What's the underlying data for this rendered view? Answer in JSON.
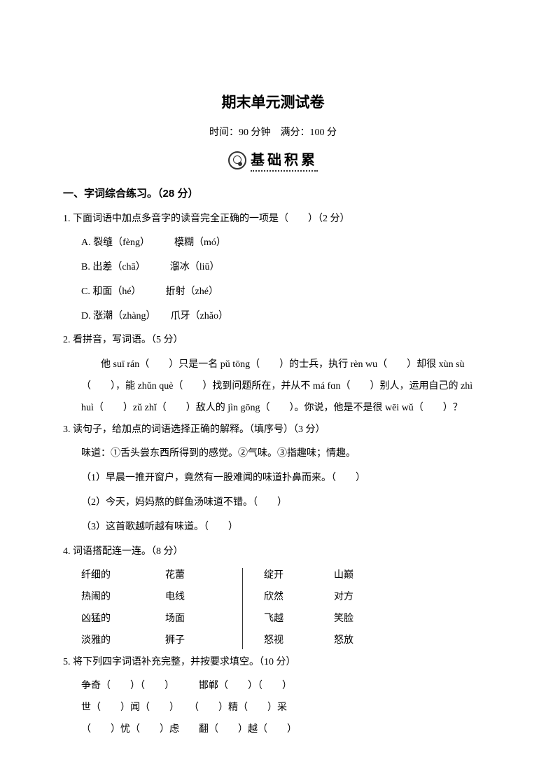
{
  "title": "期末单元测试卷",
  "subtitle": "时间：90 分钟　满分：100 分",
  "banner": "基础积累",
  "section1": {
    "heading": "一、字词综合练习。（28 分）",
    "q1": {
      "stem": "1. 下面词语中加点多音字的读音完全正确的一项是（　　）（2 分）",
      "optA_pre": "A. 裂",
      "optA_char": "缝",
      "optA_post": "（fèng）",
      "optA2_char": "模",
      "optA2_post": "糊（mó）",
      "optB_pre": "B. 出",
      "optB_char": "差",
      "optB_post": "（chā）",
      "optB2_char": "溜",
      "optB2_post": "冰（liū）",
      "optC_pre": "C. ",
      "optC_char": "和",
      "optC_post": "面（hé）",
      "optC2_char": "折",
      "optC2_post": "射（zhé）",
      "optD_pre": "D. ",
      "optD_char": "涨",
      "optD_post": "潮（zhàng）",
      "optD2_char": "爪",
      "optD2_post": "牙（zhǎo）"
    },
    "q2": {
      "stem": "2. 看拼音，写词语。（5 分）",
      "body": "　　他 suī rán（　　）只是一名 pǔ tōng（　　）的士兵，执行 rèn wu（　　）却很 xùn sù（　　），能 zhǔn què（　　）找到问题所在，并从不 má fɑn（　　）别人，运用自己的 zhì huì（　　）zǔ zhǐ（　　）敌人的 jìn gōng（　　）。你说，他是不是很 wēi wǔ（　　）？"
    },
    "q3": {
      "stem": "3. 读句子，给加点的词语选择正确的解释。（填序号）（3 分）",
      "def": "味道：①舌头尝东西所得到的感觉。②气味。③指趣味；情趣。",
      "s1": "（1）早晨一推开窗户，竟然有一股难闻的味道扑鼻而来。（　　）",
      "s2": "（2）今天，妈妈熬的鲜鱼汤味道不错。（　　）",
      "s3": "（3）这首歌越听越有味道。（　　）"
    },
    "q4": {
      "stem": "4. 词语搭配连一连。（8 分）",
      "left1": [
        "纤细的",
        "热闹的",
        "凶猛的",
        "淡雅的"
      ],
      "left2": [
        "花蕾",
        "电线",
        "场面",
        "狮子"
      ],
      "right1": [
        "绽开",
        "欣然",
        "飞越",
        "怒视"
      ],
      "right2": [
        "山巅",
        "对方",
        "笑脸",
        "怒放"
      ]
    },
    "q5": {
      "stem": "5. 将下列四字词语补充完整，并按要求填空。（10 分）",
      "line1": "争奇（　　）（　　）　　　邯郸（　　）（　　）",
      "line2": "世（　　）闻（　　）　　（　　）精（　　）采",
      "line3": "（　　）忧（　　）虑　　翻（　　）越（　　）"
    }
  }
}
